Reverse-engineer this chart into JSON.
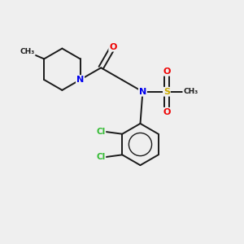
{
  "background_color": "#efefef",
  "atom_colors": {
    "C": "#1a1a1a",
    "N": "#0000ee",
    "O": "#ee0000",
    "S": "#ccaa00",
    "Cl": "#33bb33",
    "H": "#1a1a1a"
  },
  "bond_color": "#1a1a1a",
  "bond_width": 1.4,
  "figsize": [
    3.0,
    3.0
  ],
  "dpi": 100,
  "xlim": [
    0,
    10
  ],
  "ylim": [
    0,
    10
  ]
}
